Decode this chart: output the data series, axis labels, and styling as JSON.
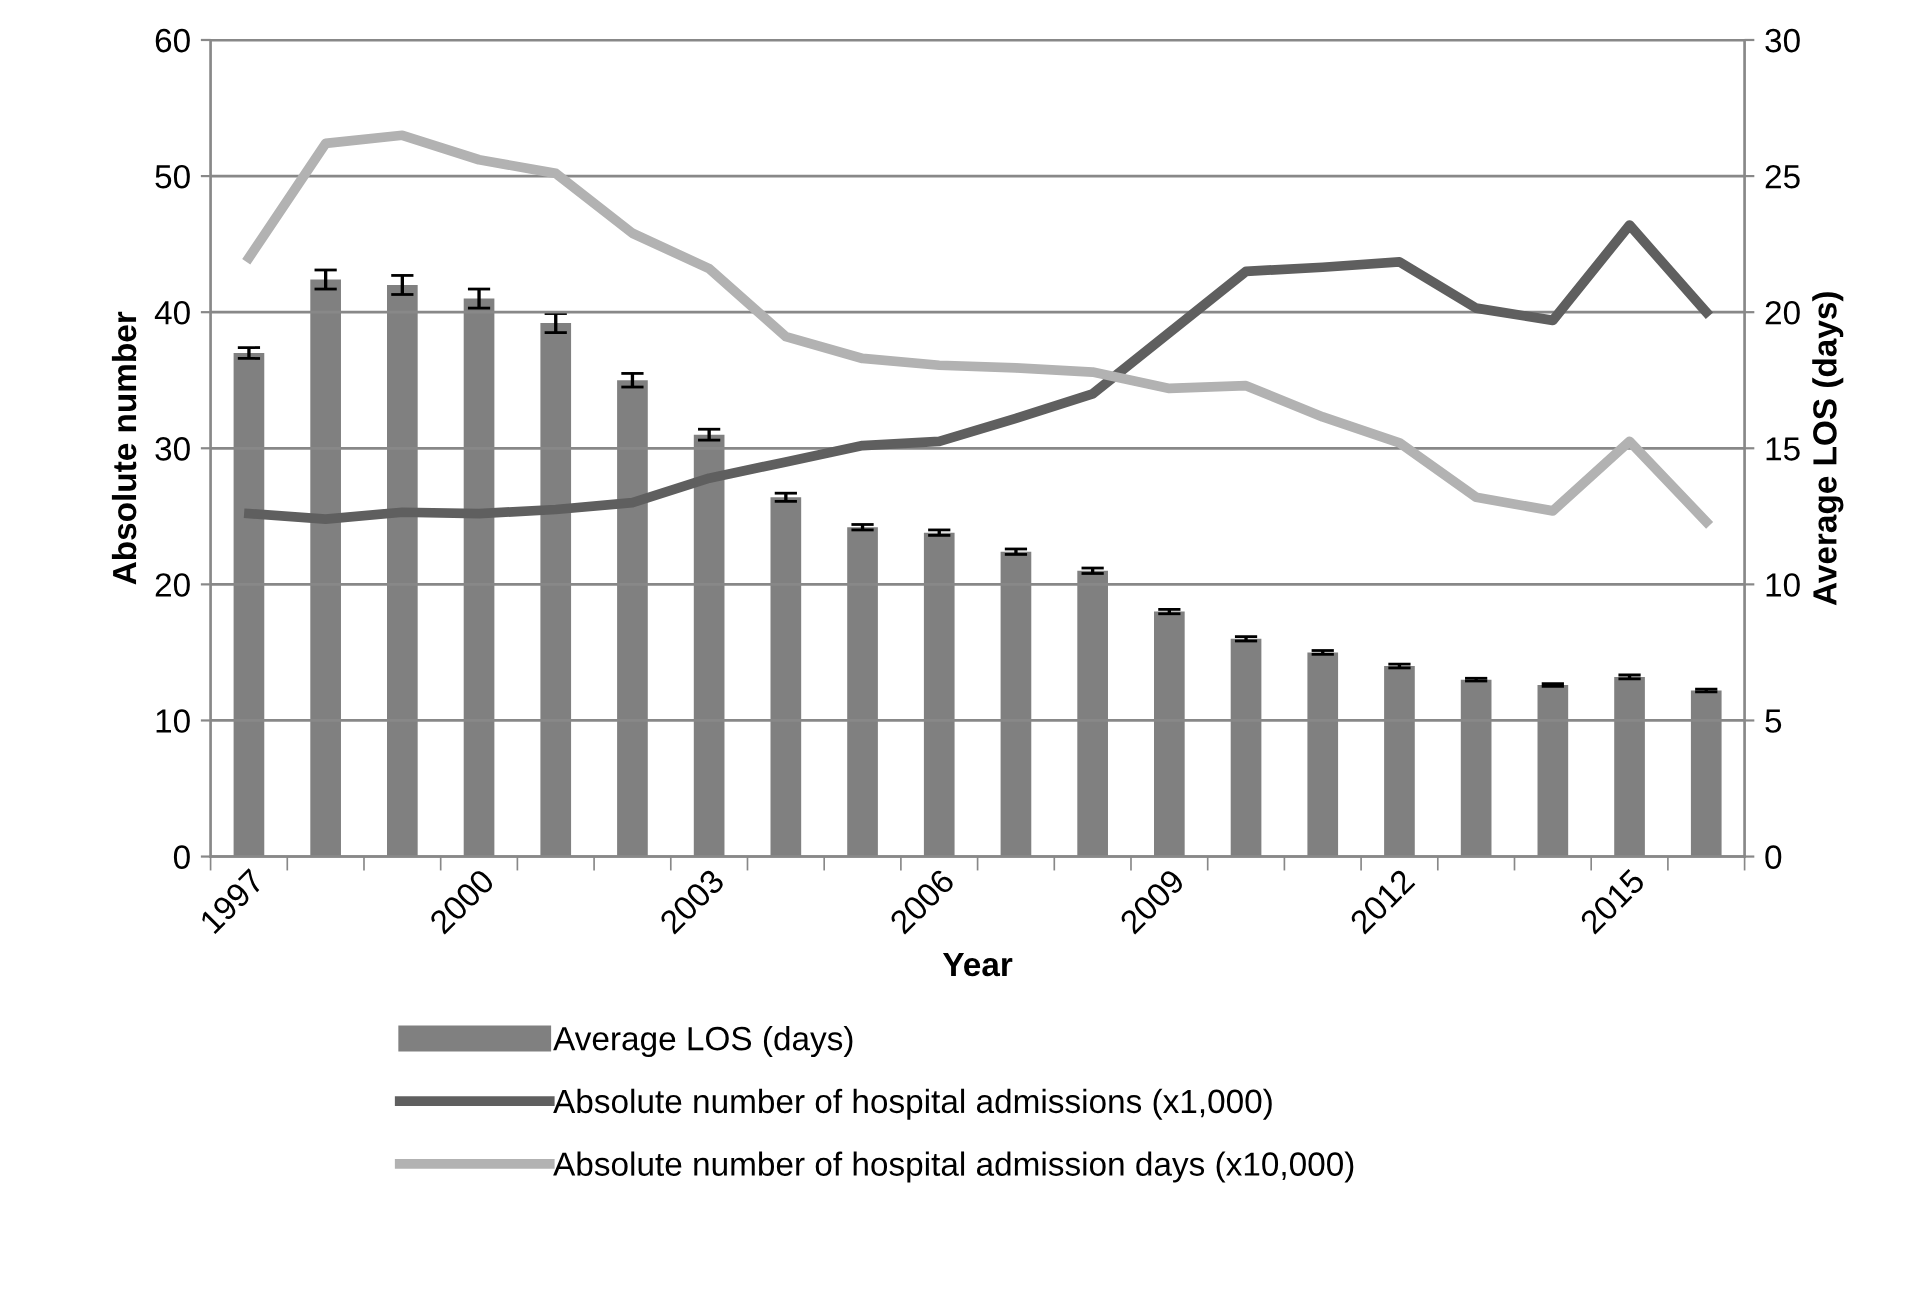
{
  "chart_data": {
    "type": "bar",
    "xlabel": "Year",
    "ylabel": "Absolute number",
    "y2label": "Average LOS (days)",
    "categories": [
      "1997",
      null,
      null,
      "2000",
      null,
      null,
      "2003",
      null,
      null,
      "2006",
      null,
      null,
      "2009",
      null,
      null,
      "2012",
      null,
      null,
      "2015",
      null
    ],
    "series": [
      {
        "name": "Average LOS (days)",
        "axis": "y2",
        "color": "#808080",
        "values": [
          18.5,
          21.2,
          21.0,
          20.5,
          19.6,
          17.5,
          15.5,
          13.2,
          12.1,
          11.9,
          11.2,
          10.5,
          9.0,
          8.0,
          7.5,
          7.0,
          6.5,
          6.3,
          6.6,
          6.1
        ],
        "errors": [
          0.2,
          0.35,
          0.35,
          0.35,
          0.35,
          0.25,
          0.2,
          0.15,
          0.1,
          0.1,
          0.1,
          0.1,
          0.08,
          0.08,
          0.07,
          0.07,
          0.05,
          0.05,
          0.07,
          0.05
        ]
      },
      {
        "name": "Absolute number of hospital admissions (x1,000)",
        "type": "line",
        "color": "#5f5f5f",
        "values": [
          25.2,
          24.8,
          25.3,
          25.2,
          25.5,
          26.0,
          27.8,
          29.0,
          30.2,
          30.5,
          32.2,
          34.0,
          38.5,
          43.0,
          43.3,
          43.7,
          40.3,
          39.4,
          46.4,
          40.0
        ]
      },
      {
        "name": "Absolute number of hospital admission days (x10,000)",
        "type": "line",
        "color": "#b2b2b2",
        "values": [
          44.0,
          52.4,
          53.0,
          51.2,
          50.2,
          45.8,
          43.2,
          38.2,
          36.6,
          36.1,
          35.9,
          35.6,
          34.4,
          34.6,
          32.3,
          30.4,
          26.4,
          25.4,
          30.5,
          24.6
        ]
      }
    ],
    "ylim": [
      0,
      60
    ],
    "yticks": [
      0,
      10,
      20,
      30,
      40,
      50,
      60
    ],
    "y2lim": [
      0,
      30
    ],
    "y2ticks": [
      0,
      5,
      10,
      15,
      20,
      25,
      30
    ],
    "grid": "y",
    "legend": "bottom",
    "marker": "none",
    "line_style": "solid"
  }
}
